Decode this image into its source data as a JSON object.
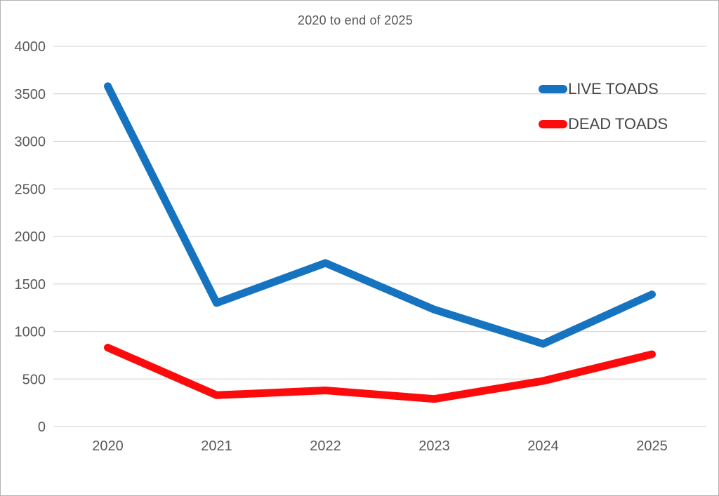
{
  "page": {
    "background": "#ffffff",
    "border_color": "#b3b3b3"
  },
  "chart_data": {
    "type": "line",
    "title": "2020 to end of 2025",
    "categories": [
      "2020",
      "2021",
      "2022",
      "2023",
      "2024",
      "2025"
    ],
    "series": [
      {
        "name": "LIVE TOADS",
        "color": "#1673bf",
        "values": [
          3580,
          1300,
          1720,
          1230,
          870,
          1390
        ]
      },
      {
        "name": "DEAD TOADS",
        "color": "#fb0b0b",
        "values": [
          830,
          330,
          380,
          290,
          480,
          760
        ]
      }
    ],
    "ylim": [
      0,
      4000
    ],
    "ytick_step": 500,
    "ytick_labels": [
      "0",
      "500",
      "1000",
      "1500",
      "2000",
      "2500",
      "3000",
      "3500",
      "4000"
    ],
    "xlabel": "",
    "ylabel": "",
    "grid": "horizontal",
    "gridline_color": "#d9d9d9",
    "axis_label_color": "#595959",
    "legend_position": "top-right",
    "legend_text_color": "#444444",
    "line_width": 11
  }
}
